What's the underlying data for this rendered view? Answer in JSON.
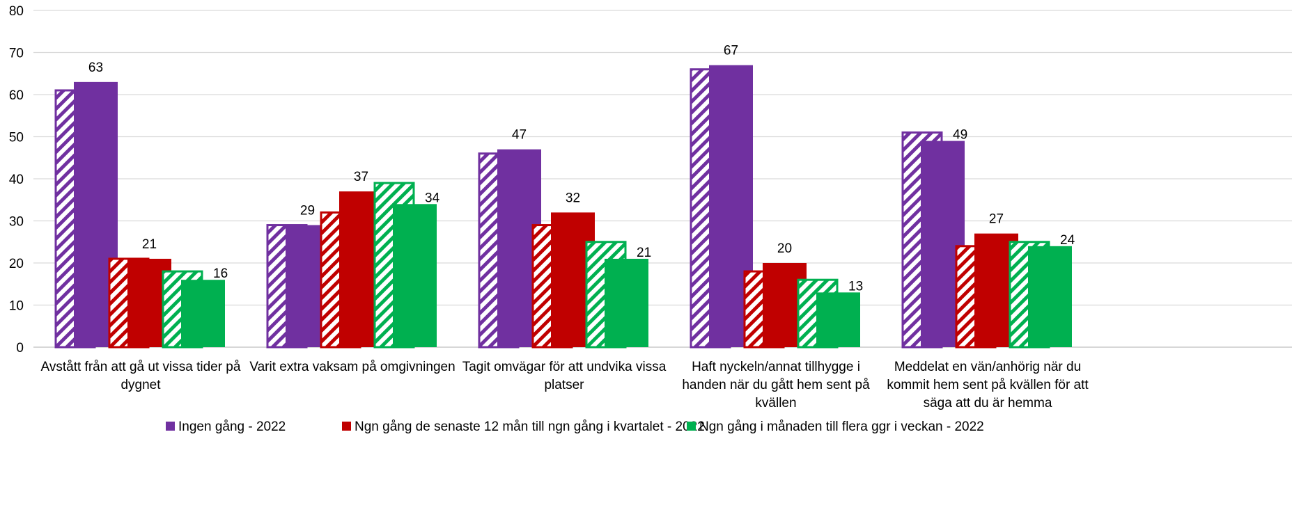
{
  "chart_data": {
    "type": "bar",
    "title": "",
    "xlabel": "",
    "ylabel": "",
    "ylim": [
      0,
      80
    ],
    "yticks": [
      0,
      10,
      20,
      30,
      40,
      50,
      60,
      70,
      80
    ],
    "grid": true,
    "legend_position": "bottom",
    "categories": [
      [
        "Avstått från att gå ut vissa tider på",
        "dygnet"
      ],
      [
        "Varit extra vaksam på omgivningen"
      ],
      [
        "Tagit omvägar för att undvika vissa",
        "platser"
      ],
      [
        "Haft nyckeln/annat tillhygge i",
        "handen när du gått hem sent på",
        "kvällen"
      ],
      [
        "Meddelat en vän/anhörig när du",
        "kommit hem sent på kvällen för att",
        "säga att du är hemma"
      ]
    ],
    "series": [
      {
        "name": "",
        "group": "Ingen gång",
        "pattern": "hatched",
        "color": "#7030a0",
        "values": [
          61,
          29,
          46,
          66,
          51
        ]
      },
      {
        "name": "Ingen gång - 2022",
        "group": "Ingen gång",
        "pattern": "solid",
        "color": "#7030a0",
        "values": [
          63,
          29,
          47,
          67,
          49
        ],
        "labels": [
          "63",
          "29",
          "47",
          "67",
          "49"
        ]
      },
      {
        "name": "",
        "group": "Ngn gång de senaste 12 mån",
        "pattern": "hatched",
        "color": "#c00000",
        "values": [
          21,
          32,
          29,
          18,
          24
        ]
      },
      {
        "name": "Ngn gång de senaste 12 mån till ngn gång i kvartalet - 2022",
        "group": "Ngn gång de senaste 12 mån",
        "pattern": "solid",
        "color": "#c00000",
        "values": [
          21,
          37,
          32,
          20,
          27
        ],
        "labels": [
          "21",
          "37",
          "32",
          "20",
          "27"
        ]
      },
      {
        "name": "",
        "group": "Ngn gång i månaden",
        "pattern": "hatched",
        "color": "#00b050",
        "values": [
          18,
          39,
          25,
          16,
          25
        ]
      },
      {
        "name": "Ngn gång i månaden till flera ggr i veckan - 2022",
        "group": "Ngn gång i månaden",
        "pattern": "solid",
        "color": "#00b050",
        "values": [
          16,
          34,
          21,
          13,
          24
        ],
        "labels": [
          "16",
          "34",
          "21",
          "13",
          "24"
        ]
      }
    ]
  }
}
